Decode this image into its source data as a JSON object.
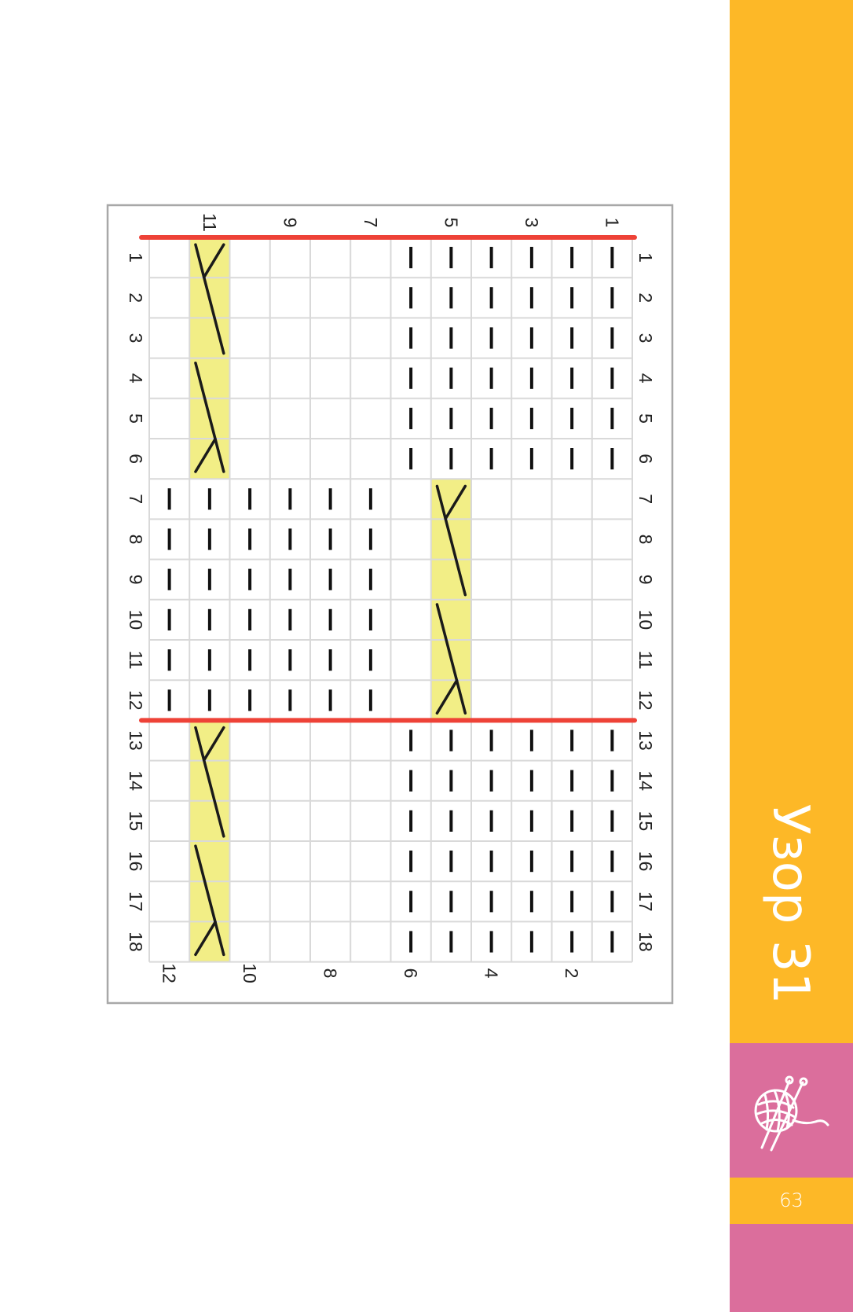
{
  "title": "Узор 31",
  "page_number": "63",
  "colors": {
    "yellow": "#FDB827",
    "pink": "#DB6E9C",
    "cable_fill": "#F2EE86",
    "red_line": "#EE4237",
    "grid": "#D9D9D9"
  },
  "icons": {
    "brand": "yarn-ball-knitting-needles-icon"
  },
  "knitting_chart": {
    "row_labels": [
      "1",
      "2",
      "3",
      "4",
      "5",
      "6",
      "7",
      "8",
      "9",
      "10",
      "11",
      "12",
      "13",
      "14",
      "15",
      "16",
      "17",
      "18"
    ],
    "top_column_labels": [
      "11",
      "9",
      "7",
      "5",
      "3",
      "1"
    ],
    "bottom_column_labels": [
      "12",
      "10",
      "8",
      "6",
      "4",
      "2"
    ],
    "legend_note": "columns listed left to right = stitch 12..1; '-' purl, 'C' cable, '.' empty",
    "rows": [
      ".C....------",
      ".C....------",
      ".C....------",
      ".C....------",
      ".C....------",
      ".C....------",
      "------.C....",
      "------.C....",
      "------.C....",
      "------.C....",
      "------.C....",
      "------.C....",
      ".C....------",
      ".C....------",
      ".C....------",
      ".C....------",
      ".C....------",
      ".C....------"
    ],
    "repeat_lines_after_rows": [
      0,
      12
    ]
  }
}
